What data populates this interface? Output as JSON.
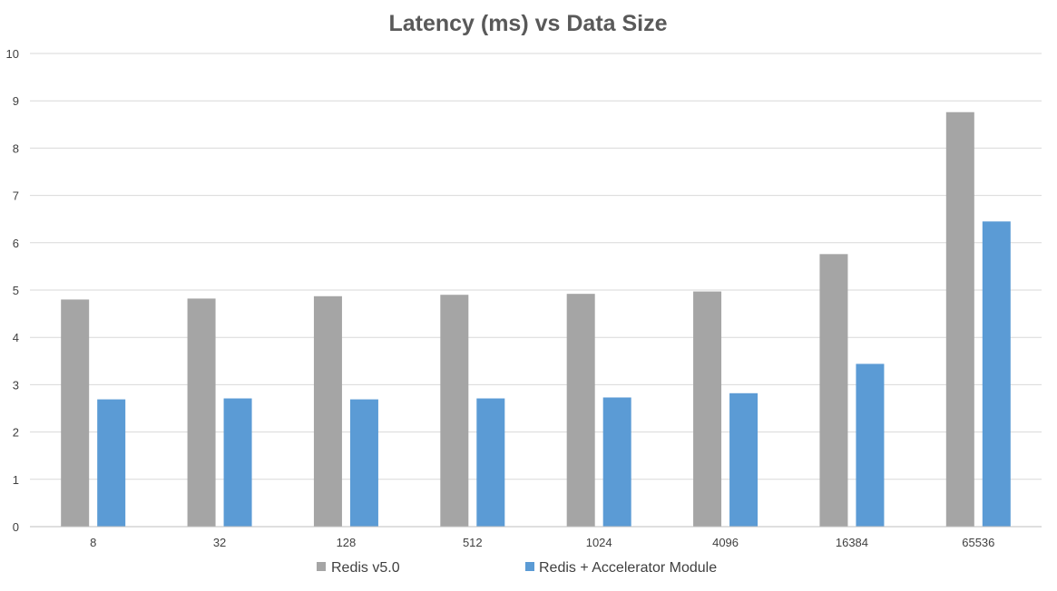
{
  "chart_data": {
    "type": "bar",
    "title": "Latency (ms)  vs Data Size",
    "xlabel": "",
    "ylabel": "",
    "categories": [
      "8",
      "32",
      "128",
      "512",
      "1024",
      "4096",
      "16384",
      "65536"
    ],
    "series": [
      {
        "name": "Redis v5.0",
        "color": "#a5a5a5",
        "values": [
          4.8,
          4.82,
          4.87,
          4.9,
          4.92,
          4.97,
          5.76,
          8.76
        ]
      },
      {
        "name": "Redis + Accelerator Module",
        "color": "#5b9bd5",
        "values": [
          2.69,
          2.71,
          2.69,
          2.71,
          2.73,
          2.82,
          3.44,
          6.45
        ]
      }
    ],
    "ylim": [
      0,
      10
    ],
    "yticks": [
      "0",
      "1",
      "2",
      "3",
      "4",
      "5",
      "6",
      "7",
      "8",
      "9",
      "10"
    ],
    "grid": true,
    "legend_position": "bottom"
  }
}
